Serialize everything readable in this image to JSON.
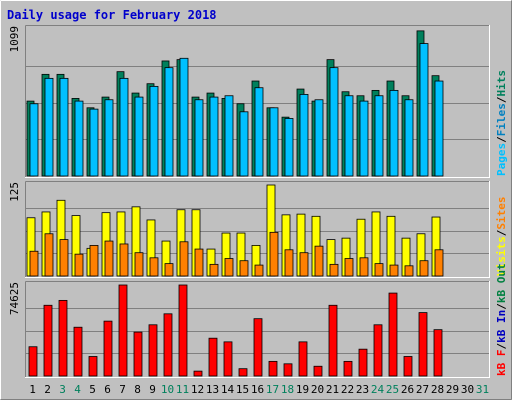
{
  "colors": {
    "background": "#c0c0c0",
    "title": "#0000cc",
    "plot_bg": "#c0c0c0",
    "grid": "#808080",
    "hits": "#00805c",
    "files": "#0080c0",
    "files_fill": "#00c0ff",
    "pages": "#00c0ff",
    "visits": "#ffff00",
    "sites": "#ff8000",
    "kb_f": "#ff0000",
    "kb_in": "#0000c0",
    "kb_out": "#008040",
    "day_weekday": "#000000",
    "day_weekend": "#00805c"
  },
  "chart_data": {
    "title": "Daily usage for February 2018",
    "type": "bar",
    "x": {
      "days": [
        "1",
        "2",
        "3",
        "4",
        "5",
        "6",
        "7",
        "8",
        "9",
        "10",
        "11",
        "12",
        "13",
        "14",
        "15",
        "16",
        "17",
        "18",
        "19",
        "20",
        "21",
        "22",
        "23",
        "24",
        "25",
        "26",
        "27",
        "28",
        "29",
        "30",
        "31"
      ],
      "weekend_days": [
        "3",
        "4",
        "10",
        "11",
        "17",
        "18",
        "24",
        "25",
        "31"
      ]
    },
    "panels": [
      {
        "name": "usage",
        "ymax_label": "1099",
        "ymax": 1099,
        "legend": [
          {
            "label": "Pages",
            "color_key": "pages"
          },
          {
            "sep": "/"
          },
          {
            "label": "Files",
            "color_key": "files"
          },
          {
            "sep": "/"
          },
          {
            "label": "Hits",
            "color_key": "hits"
          }
        ],
        "series": [
          {
            "name": "Hits",
            "values": [
              560,
              760,
              760,
              580,
              510,
              590,
              780,
              620,
              690,
              860,
              870,
              590,
              620,
              580,
              540,
              710,
              510,
              440,
              650,
              560,
              870,
              630,
              600,
              640,
              710,
              600,
              1085,
              750,
              0,
              0,
              0
            ]
          },
          {
            "name": "Files",
            "values": [
              540,
              730,
              730,
              560,
              500,
              570,
              730,
              590,
              670,
              810,
              880,
              570,
              590,
              600,
              480,
              660,
              510,
              430,
              610,
              570,
              810,
              600,
              560,
              600,
              640,
              570,
              990,
              710,
              0,
              0,
              0
            ]
          }
        ]
      },
      {
        "name": "visits",
        "ymax_label": "125",
        "ymax": 125,
        "legend": [
          {
            "label": "Visits",
            "color_key": "visits"
          },
          {
            "sep": "/"
          },
          {
            "label": "Sites",
            "color_key": "sites"
          }
        ],
        "series": [
          {
            "name": "Visits",
            "values": [
              80,
              88,
              104,
              83,
              38,
              87,
              88,
              95,
              77,
              48,
              91,
              91,
              37,
              59,
              59,
              42,
              125,
              84,
              85,
              82,
              50,
              52,
              78,
              88,
              82,
              52,
              58,
              81,
              0,
              0,
              0
            ]
          },
          {
            "name": "Sites",
            "values": [
              34,
              58,
              50,
              30,
              42,
              48,
              44,
              32,
              25,
              17,
              47,
              37,
              16,
              24,
              21,
              15,
              60,
              36,
              32,
              41,
              16,
              24,
              25,
              17,
              15,
              14,
              21,
              36,
              0,
              0,
              0
            ]
          }
        ]
      },
      {
        "name": "kbytes",
        "ymax_label": "74625",
        "ymax": 74625,
        "legend": [
          {
            "label": "kB F",
            "color_key": "kb_f"
          },
          {
            "sep": "/"
          },
          {
            "label": "kB In",
            "color_key": "kb_in"
          },
          {
            "sep": "/"
          },
          {
            "label": "kB Out",
            "color_key": "kb_out"
          }
        ],
        "series": [
          {
            "name": "kB F",
            "values": [
              24000,
              58000,
              62000,
              40000,
              16000,
              45000,
              76000,
              36000,
              42000,
              51000,
              75000,
              4000,
              31000,
              28000,
              6000,
              47000,
              12000,
              10000,
              28000,
              8000,
              58000,
              12000,
              22000,
              42000,
              68000,
              16000,
              52000,
              38000,
              0,
              0,
              0
            ]
          }
        ]
      }
    ]
  }
}
